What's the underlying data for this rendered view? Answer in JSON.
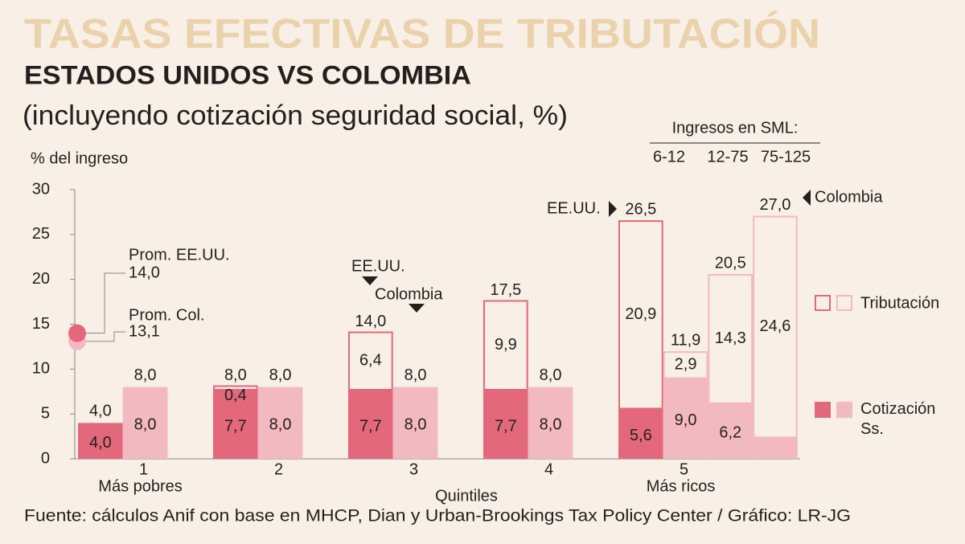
{
  "chart_data": {
    "type": "bar",
    "title": "TASAS EFECTIVAS DE TRIBUTACIÓN",
    "subtitle": "ESTADOS UNIDOS VS COLOMBIA",
    "note": "(incluyendo cotización seguridad social, %)",
    "y_label": "% del ingreso",
    "x_label": "Quintiles",
    "source": "Fuente: cálculos Anif con base en MHCP, Dian y Urban-Brookings Tax Policy Center / Gráfico: LR-JG",
    "ylim": [
      0,
      30
    ],
    "yticks": [
      0,
      5,
      10,
      15,
      20,
      25,
      30
    ],
    "countries": [
      {
        "name": "EE.UU.",
        "color": "#e4687c"
      },
      {
        "name": "Colombia",
        "color": "#f3b9c1"
      }
    ],
    "legend": [
      {
        "label": "Tributación",
        "style": "outline"
      },
      {
        "label": "Cotización Ss.",
        "style": "filled"
      }
    ],
    "income_brackets": {
      "title": "Ingresos en SML:",
      "labels": [
        "6-12",
        "12-75",
        "75-125"
      ]
    },
    "averages": [
      {
        "label": "Prom. EE.UU.",
        "value": 14.0,
        "value_label": "14,0",
        "color": "#e4687c"
      },
      {
        "label": "Prom. Col.",
        "value": 13.1,
        "value_label": "13,1",
        "color": "#f3b9c1"
      }
    ],
    "categories": [
      {
        "label": "1",
        "note": "Más pobres",
        "bars": [
          {
            "color": "#e4687c",
            "cotizacion": 4.0,
            "cotizacion_label": "4,0",
            "tributacion": null,
            "tributacion_label": null,
            "total": 4.0,
            "total_label": "4,0"
          },
          {
            "color": "#f3b9c1",
            "cotizacion": 8.0,
            "cotizacion_label": "8,0",
            "tributacion": null,
            "tributacion_label": null,
            "total": 8.0,
            "total_label": "8,0"
          }
        ]
      },
      {
        "label": "2",
        "bars": [
          {
            "color": "#e4687c",
            "cotizacion": 7.7,
            "cotizacion_label": "7,7",
            "tributacion": 0.4,
            "tributacion_label": "0,4",
            "total": 8.0,
            "total_label": "8,0"
          },
          {
            "color": "#f3b9c1",
            "cotizacion": 8.0,
            "cotizacion_label": "8,0",
            "tributacion": null,
            "tributacion_label": null,
            "total": 8.0,
            "total_label": "8,0"
          }
        ]
      },
      {
        "label": "3",
        "bars": [
          {
            "color": "#e4687c",
            "cotizacion": 7.7,
            "cotizacion_label": "7,7",
            "tributacion": 6.4,
            "tributacion_label": "6,4",
            "total": 14.0,
            "total_label": "14,0"
          },
          {
            "color": "#f3b9c1",
            "cotizacion": 8.0,
            "cotizacion_label": "8,0",
            "tributacion": null,
            "tributacion_label": null,
            "total": 8.0,
            "total_label": "8,0"
          }
        ]
      },
      {
        "label": "4",
        "bars": [
          {
            "color": "#e4687c",
            "cotizacion": 7.7,
            "cotizacion_label": "7,7",
            "tributacion": 9.9,
            "tributacion_label": "9,9",
            "total": 17.5,
            "total_label": "17,5"
          },
          {
            "color": "#f3b9c1",
            "cotizacion": 8.0,
            "cotizacion_label": "8,0",
            "tributacion": null,
            "tributacion_label": null,
            "total": 8.0,
            "total_label": "8,0"
          }
        ]
      },
      {
        "label": "5",
        "note": "Más ricos",
        "bars": [
          {
            "color": "#e4687c",
            "cotizacion": 5.6,
            "cotizacion_label": "5,6",
            "tributacion": 20.9,
            "tributacion_label": "20,9",
            "total": 26.5,
            "total_label": "26,5"
          },
          {
            "color": "#f3b9c1",
            "cotizacion": 9.0,
            "cotizacion_label": "9,0",
            "tributacion": 2.9,
            "tributacion_label": "2,9",
            "total": 11.9,
            "total_label": "11,9"
          },
          {
            "color": "#f3b9c1",
            "cotizacion": 6.2,
            "cotizacion_label": "6,2",
            "tributacion": 14.3,
            "tributacion_label": "14,3",
            "total": 20.5,
            "total_label": "20,5"
          },
          {
            "color": "#f3b9c1",
            "cotizacion": 2.4,
            "cotizacion_label": null,
            "tributacion": 24.6,
            "tributacion_label": "24,6",
            "total": 27.0,
            "total_label": "27,0"
          }
        ]
      }
    ]
  }
}
